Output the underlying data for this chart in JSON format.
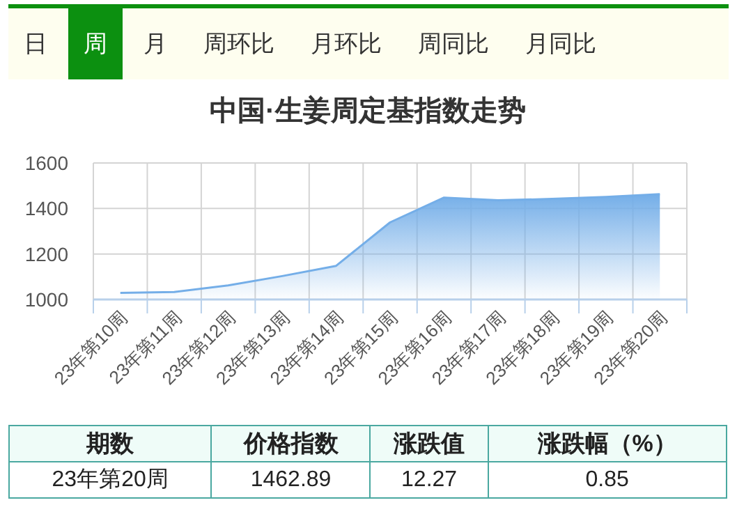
{
  "chart_data": [
    {
      "type": "other",
      "annotations": [
        "日",
        "周",
        "月",
        "周环比",
        "月环比",
        "周同比",
        "月同比"
      ]
    },
    {
      "type": "area",
      "title": "中国·生姜周定基指数走势",
      "categories": [
        "23年第10周",
        "23年第11周",
        "23年第12周",
        "23年第13周",
        "23年第14周",
        "23年第15周",
        "23年第16周",
        "23年第17周",
        "23年第18周",
        "23年第19周",
        "23年第20周"
      ],
      "values": [
        1029,
        1033,
        1062,
        1103,
        1148,
        1339,
        1448,
        1436,
        1442,
        1451,
        1462.89
      ],
      "color": "#74aee8",
      "ylim": [
        1000,
        1600
      ],
      "yticks": [
        1000,
        1200,
        1400,
        1600
      ],
      "grid": true
    },
    {
      "type": "other",
      "annotations": [
        "期数",
        "价格指数",
        "涨跌值",
        "涨跌幅（%）",
        "23年第20周",
        "1462.89",
        "12.27",
        "0.85"
      ]
    }
  ]
}
